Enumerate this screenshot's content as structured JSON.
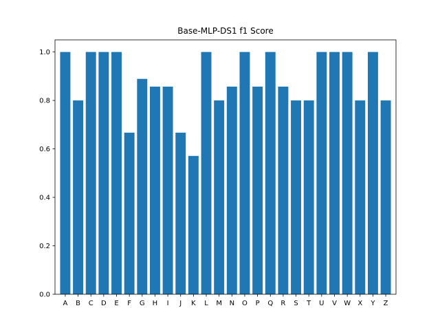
{
  "chart_data": {
    "type": "bar",
    "title": "Base-MLP-DS1 f1 Score",
    "xlabel": "",
    "ylabel": "",
    "categories": [
      "A",
      "B",
      "C",
      "D",
      "E",
      "F",
      "G",
      "H",
      "I",
      "J",
      "K",
      "L",
      "M",
      "N",
      "O",
      "P",
      "Q",
      "R",
      "S",
      "T",
      "U",
      "V",
      "W",
      "X",
      "Y",
      "Z"
    ],
    "values": [
      1.0,
      0.8,
      1.0,
      1.0,
      1.0,
      0.667,
      0.889,
      0.857,
      0.857,
      0.667,
      0.571,
      1.0,
      0.8,
      0.857,
      1.0,
      0.857,
      1.0,
      0.857,
      0.8,
      0.8,
      1.0,
      1.0,
      1.0,
      0.8,
      1.0,
      0.8
    ],
    "ylim": [
      0,
      1.05
    ],
    "yticks": [
      "0.0",
      "0.2",
      "0.4",
      "0.6",
      "0.8",
      "1.0"
    ],
    "bar_color": "#1f77b4",
    "grid": false
  }
}
